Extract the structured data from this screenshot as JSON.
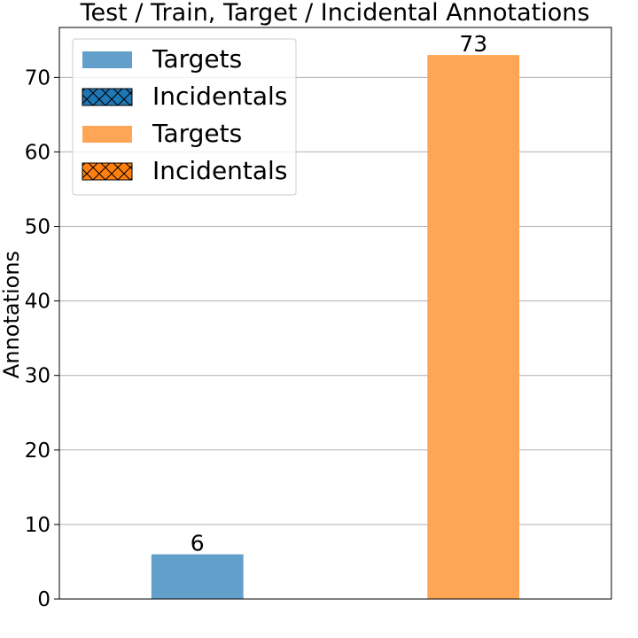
{
  "chart_data": {
    "type": "bar",
    "title": "Test / Train, Target / Incidental Annotations",
    "xlabel": "",
    "ylabel": "Annotations",
    "ylim": [
      0,
      76.7
    ],
    "yticks": [
      0,
      10,
      20,
      30,
      40,
      50,
      60,
      70
    ],
    "grid": "y",
    "legend_position": "upper left",
    "series": [
      {
        "name": "Targets",
        "group": "Test",
        "values": [
          6,
          0
        ],
        "color": "#62a0cb",
        "hatch": false
      },
      {
        "name": "Incidentals",
        "group": "Test",
        "values": [
          0,
          0
        ],
        "color": "#1f77b4",
        "hatch": true
      },
      {
        "name": "Targets",
        "group": "Train",
        "values": [
          0,
          73
        ],
        "color": "#ffa556",
        "hatch": false
      },
      {
        "name": "Incidentals",
        "group": "Train",
        "values": [
          0,
          0
        ],
        "color": "#ff7f0e",
        "hatch": true
      }
    ],
    "bars": [
      {
        "value": 6,
        "label": "6",
        "color": "#62a0cb"
      },
      {
        "value": 73,
        "label": "73",
        "color": "#ffa556"
      }
    ]
  }
}
